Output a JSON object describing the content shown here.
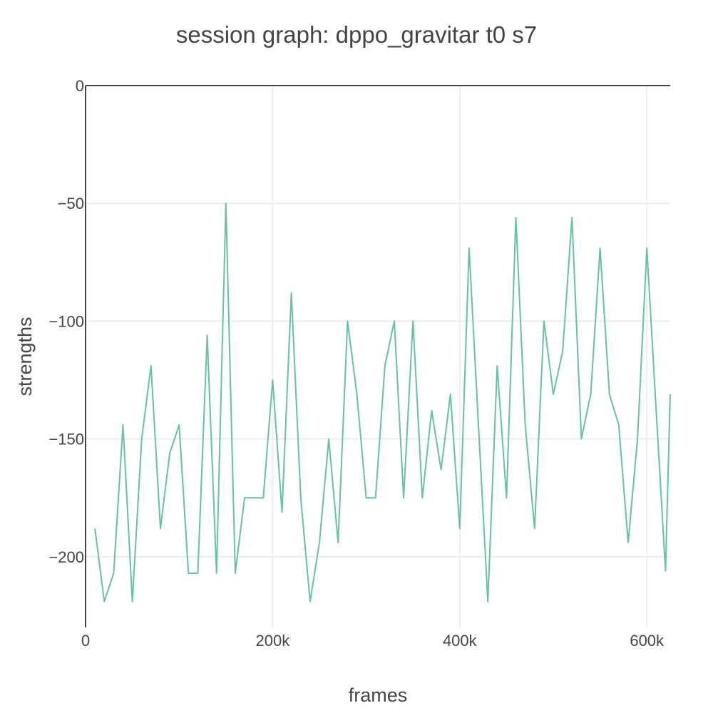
{
  "chart_data": {
    "type": "line",
    "title": "session graph: dppo_gravitar t0 s7",
    "xlabel": "frames",
    "ylabel": "strengths",
    "xlim": [
      0,
      625000
    ],
    "ylim": [
      -230,
      0
    ],
    "grid": true,
    "legend": "none",
    "x_ticks": [
      {
        "value": 0,
        "label": "0"
      },
      {
        "value": 200000,
        "label": "200k"
      },
      {
        "value": 400000,
        "label": "400k"
      },
      {
        "value": 600000,
        "label": "600k"
      }
    ],
    "y_ticks": [
      {
        "value": 0,
        "label": "0"
      },
      {
        "value": -50,
        "label": "−50"
      },
      {
        "value": -100,
        "label": "−100"
      },
      {
        "value": -150,
        "label": "−150"
      },
      {
        "value": -200,
        "label": "−200"
      }
    ],
    "series": [
      {
        "color": "#66c2a5",
        "x": [
          10000,
          20000,
          30000,
          40000,
          50000,
          60000,
          70000,
          80000,
          90000,
          100000,
          110000,
          120000,
          130000,
          140000,
          150000,
          160000,
          170000,
          180000,
          190000,
          200000,
          210000,
          220000,
          230000,
          240000,
          250000,
          260000,
          270000,
          280000,
          290000,
          300000,
          310000,
          320000,
          330000,
          340000,
          350000,
          360000,
          370000,
          380000,
          390000,
          400000,
          410000,
          420000,
          430000,
          440000,
          450000,
          460000,
          470000,
          480000,
          490000,
          500000,
          510000,
          520000,
          530000,
          540000,
          550000,
          560000,
          570000,
          580000,
          590000,
          600000,
          610000,
          620000,
          625000
        ],
        "values": [
          -188,
          -219,
          -207,
          -144,
          -219,
          -150,
          -119,
          -188,
          -156,
          -144,
          -207,
          -207,
          -106,
          -207,
          -50,
          -207,
          -175,
          -175,
          -175,
          -125,
          -181,
          -88,
          -175,
          -219,
          -194,
          -150,
          -194,
          -100,
          -131,
          -175,
          -175,
          -119,
          -100,
          -175,
          -100,
          -175,
          -138,
          -163,
          -131,
          -188,
          -69,
          -144,
          -219,
          -119,
          -175,
          -56,
          -144,
          -188,
          -100,
          -131,
          -113,
          -56,
          -150,
          -131,
          -69,
          -131,
          -144,
          -194,
          -150,
          -69,
          -138,
          -206,
          -131
        ]
      }
    ]
  }
}
